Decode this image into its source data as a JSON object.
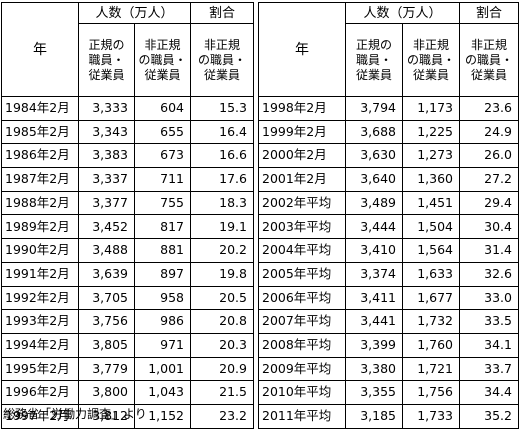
{
  "headers": {
    "year": "年",
    "people_group": "人数（万人）",
    "ratio_group": "割合",
    "regular": [
      "正規の",
      "職員・",
      "従業員"
    ],
    "nonregular": [
      "非正規",
      "の職員・",
      "従業員"
    ],
    "ratio_nonregular": [
      "非正規",
      "の職員・",
      "従業員"
    ]
  },
  "left_rows": [
    {
      "year": "1984年2月",
      "regular": "3,333",
      "nonregular": "604",
      "ratio": "15.3"
    },
    {
      "year": "1985年2月",
      "regular": "3,343",
      "nonregular": "655",
      "ratio": "16.4"
    },
    {
      "year": "1986年2月",
      "regular": "3,383",
      "nonregular": "673",
      "ratio": "16.6"
    },
    {
      "year": "1987年2月",
      "regular": "3,337",
      "nonregular": "711",
      "ratio": "17.6"
    },
    {
      "year": "1988年2月",
      "regular": "3,377",
      "nonregular": "755",
      "ratio": "18.3"
    },
    {
      "year": "1989年2月",
      "regular": "3,452",
      "nonregular": "817",
      "ratio": "19.1"
    },
    {
      "year": "1990年2月",
      "regular": "3,488",
      "nonregular": "881",
      "ratio": "20.2"
    },
    {
      "year": "1991年2月",
      "regular": "3,639",
      "nonregular": "897",
      "ratio": "19.8"
    },
    {
      "year": "1992年2月",
      "regular": "3,705",
      "nonregular": "958",
      "ratio": "20.5"
    },
    {
      "year": "1993年2月",
      "regular": "3,756",
      "nonregular": "986",
      "ratio": "20.8"
    },
    {
      "year": "1994年2月",
      "regular": "3,805",
      "nonregular": "971",
      "ratio": "20.3"
    },
    {
      "year": "1995年2月",
      "regular": "3,779",
      "nonregular": "1,001",
      "ratio": "20.9"
    },
    {
      "year": "1996年2月",
      "regular": "3,800",
      "nonregular": "1,043",
      "ratio": "21.5"
    },
    {
      "year": "1997年2月",
      "regular": "3,812",
      "nonregular": "1,152",
      "ratio": "23.2"
    }
  ],
  "right_rows": [
    {
      "year": "1998年2月",
      "regular": "3,794",
      "nonregular": "1,173",
      "ratio": "23.6"
    },
    {
      "year": "1999年2月",
      "regular": "3,688",
      "nonregular": "1,225",
      "ratio": "24.9"
    },
    {
      "year": "2000年2月",
      "regular": "3,630",
      "nonregular": "1,273",
      "ratio": "26.0"
    },
    {
      "year": "2001年2月",
      "regular": "3,640",
      "nonregular": "1,360",
      "ratio": "27.2"
    },
    {
      "year": "2002年平均",
      "regular": "3,489",
      "nonregular": "1,451",
      "ratio": "29.4"
    },
    {
      "year": "2003年平均",
      "regular": "3,444",
      "nonregular": "1,504",
      "ratio": "30.4"
    },
    {
      "year": "2004年平均",
      "regular": "3,410",
      "nonregular": "1,564",
      "ratio": "31.4"
    },
    {
      "year": "2005年平均",
      "regular": "3,374",
      "nonregular": "1,633",
      "ratio": "32.6"
    },
    {
      "year": "2006年平均",
      "regular": "3,411",
      "nonregular": "1,677",
      "ratio": "33.0"
    },
    {
      "year": "2007年平均",
      "regular": "3,441",
      "nonregular": "1,732",
      "ratio": "33.5"
    },
    {
      "year": "2008年平均",
      "regular": "3,399",
      "nonregular": "1,760",
      "ratio": "34.1"
    },
    {
      "year": "2009年平均",
      "regular": "3,380",
      "nonregular": "1,721",
      "ratio": "33.7"
    },
    {
      "year": "2010年平均",
      "regular": "3,355",
      "nonregular": "1,756",
      "ratio": "34.4"
    },
    {
      "year": "2011年平均",
      "regular": "3,185",
      "nonregular": "1,733",
      "ratio": "35.2"
    }
  ],
  "source_note": "総務省「労働力調査」より"
}
